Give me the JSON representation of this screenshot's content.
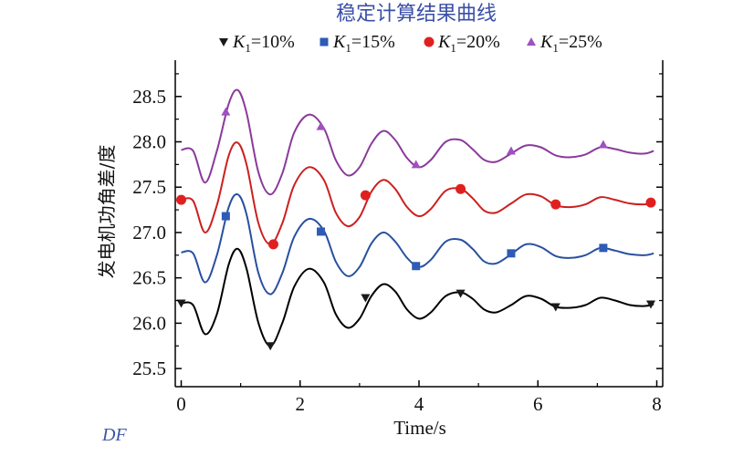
{
  "watermark": "DF",
  "chart_data": {
    "type": "line",
    "title": "稳定计算结果曲线",
    "xlabel": "Time/s",
    "ylabel": "发电机功角差/度",
    "xlim": [
      -0.1,
      8.1
    ],
    "ylim": [
      25.3,
      28.9
    ],
    "xticks": [
      0,
      2,
      4,
      6,
      8
    ],
    "yticks": [
      25.5,
      26.0,
      26.5,
      27.0,
      27.5,
      28.0,
      28.5
    ],
    "ytick_labels": [
      "25.5",
      "26.0",
      "26.5",
      "27.0",
      "27.5",
      "28.0",
      "28.5"
    ],
    "legend_position": "top",
    "grid": false,
    "series": [
      {
        "name": "K1=10%",
        "legend_main": "K",
        "legend_sub": "1",
        "legend_rest": "=10%",
        "color": "#000000",
        "marker": "triangle-down",
        "marker_color": "#1a1a1a",
        "x": [
          0,
          0.2,
          0.4,
          0.6,
          0.8,
          0.95,
          1.1,
          1.3,
          1.5,
          1.7,
          1.9,
          2.15,
          2.4,
          2.6,
          2.8,
          3.0,
          3.2,
          3.4,
          3.6,
          3.8,
          4.0,
          4.2,
          4.45,
          4.7,
          4.9,
          5.1,
          5.3,
          5.55,
          5.8,
          6.05,
          6.3,
          6.55,
          6.8,
          7.05,
          7.3,
          7.55,
          7.8,
          7.95
        ],
        "y": [
          26.22,
          26.2,
          25.88,
          26.1,
          26.65,
          26.82,
          26.6,
          26.0,
          25.75,
          26.0,
          26.4,
          26.6,
          26.45,
          26.1,
          25.95,
          26.05,
          26.3,
          26.43,
          26.35,
          26.15,
          26.05,
          26.12,
          26.3,
          26.34,
          26.27,
          26.15,
          26.12,
          26.2,
          26.3,
          26.27,
          26.18,
          26.17,
          26.2,
          26.28,
          26.25,
          26.2,
          26.19,
          26.21
        ],
        "marker_x": [
          0,
          1.5,
          3.1,
          4.7,
          6.3,
          7.9
        ],
        "marker_y": [
          26.22,
          25.75,
          26.28,
          26.33,
          26.18,
          26.21
        ]
      },
      {
        "name": "K1=15%",
        "legend_main": "K",
        "legend_sub": "1",
        "legend_rest": "=15%",
        "color": "#2850a0",
        "marker": "square",
        "marker_color": "#2e5bb5",
        "x": [
          0,
          0.2,
          0.4,
          0.6,
          0.8,
          0.95,
          1.1,
          1.3,
          1.5,
          1.7,
          1.9,
          2.15,
          2.4,
          2.6,
          2.8,
          3.0,
          3.2,
          3.4,
          3.6,
          3.8,
          4.0,
          4.2,
          4.45,
          4.7,
          4.9,
          5.1,
          5.3,
          5.55,
          5.8,
          6.05,
          6.3,
          6.55,
          6.8,
          7.05,
          7.3,
          7.55,
          7.8,
          7.95
        ],
        "y": [
          26.78,
          26.77,
          26.45,
          26.75,
          27.28,
          27.42,
          27.2,
          26.55,
          26.32,
          26.55,
          26.95,
          27.15,
          27.02,
          26.68,
          26.52,
          26.62,
          26.88,
          27.0,
          26.9,
          26.72,
          26.62,
          26.7,
          26.9,
          26.92,
          26.82,
          26.68,
          26.66,
          26.76,
          26.87,
          26.84,
          26.74,
          26.72,
          26.75,
          26.83,
          26.8,
          26.76,
          26.75,
          26.77
        ],
        "marker_x": [
          0.75,
          2.35,
          3.95,
          5.55,
          7.1
        ],
        "marker_y": [
          27.18,
          27.01,
          26.63,
          26.77,
          26.83
        ]
      },
      {
        "name": "K1=20%",
        "legend_main": "K",
        "legend_sub": "1",
        "legend_rest": "=20%",
        "color": "#cc2020",
        "marker": "circle",
        "marker_color": "#e02020",
        "x": [
          0,
          0.2,
          0.4,
          0.6,
          0.8,
          0.95,
          1.1,
          1.3,
          1.5,
          1.7,
          1.9,
          2.15,
          2.4,
          2.6,
          2.8,
          3.0,
          3.2,
          3.4,
          3.6,
          3.8,
          4.0,
          4.2,
          4.45,
          4.7,
          4.9,
          5.1,
          5.3,
          5.55,
          5.8,
          6.05,
          6.3,
          6.55,
          6.8,
          7.05,
          7.3,
          7.55,
          7.8,
          7.95
        ],
        "y": [
          27.36,
          27.35,
          27.0,
          27.3,
          27.85,
          27.99,
          27.75,
          27.1,
          26.87,
          27.1,
          27.52,
          27.72,
          27.58,
          27.22,
          27.07,
          27.17,
          27.45,
          27.58,
          27.48,
          27.28,
          27.18,
          27.26,
          27.46,
          27.48,
          27.38,
          27.24,
          27.22,
          27.32,
          27.42,
          27.4,
          27.3,
          27.28,
          27.31,
          27.39,
          27.36,
          27.32,
          27.31,
          27.33
        ],
        "marker_x": [
          0,
          1.55,
          3.1,
          4.7,
          6.3,
          7.9
        ],
        "marker_y": [
          27.36,
          26.87,
          27.41,
          27.48,
          27.31,
          27.33
        ]
      },
      {
        "name": "K1=25%",
        "legend_main": "K",
        "legend_sub": "1",
        "legend_rest": "=25%",
        "color": "#8a3a9a",
        "marker": "triangle-up",
        "marker_color": "#a050c0",
        "x": [
          0,
          0.2,
          0.4,
          0.6,
          0.8,
          0.95,
          1.1,
          1.3,
          1.5,
          1.7,
          1.9,
          2.15,
          2.4,
          2.6,
          2.8,
          3.0,
          3.2,
          3.4,
          3.6,
          3.8,
          4.0,
          4.2,
          4.45,
          4.7,
          4.9,
          5.1,
          5.3,
          5.55,
          5.8,
          6.05,
          6.3,
          6.55,
          6.8,
          7.05,
          7.3,
          7.55,
          7.8,
          7.95
        ],
        "y": [
          27.91,
          27.9,
          27.55,
          27.9,
          28.42,
          28.57,
          28.32,
          27.66,
          27.42,
          27.65,
          28.1,
          28.3,
          28.15,
          27.8,
          27.63,
          27.72,
          27.98,
          28.12,
          28.02,
          27.82,
          27.72,
          27.8,
          28.0,
          28.02,
          27.92,
          27.8,
          27.78,
          27.87,
          27.96,
          27.94,
          27.85,
          27.83,
          27.86,
          27.94,
          27.92,
          27.88,
          27.87,
          27.9
        ],
        "marker_x": [
          0.75,
          2.35,
          3.95,
          5.55,
          7.1
        ],
        "marker_y": [
          28.33,
          28.17,
          27.75,
          27.9,
          27.97
        ]
      }
    ]
  }
}
